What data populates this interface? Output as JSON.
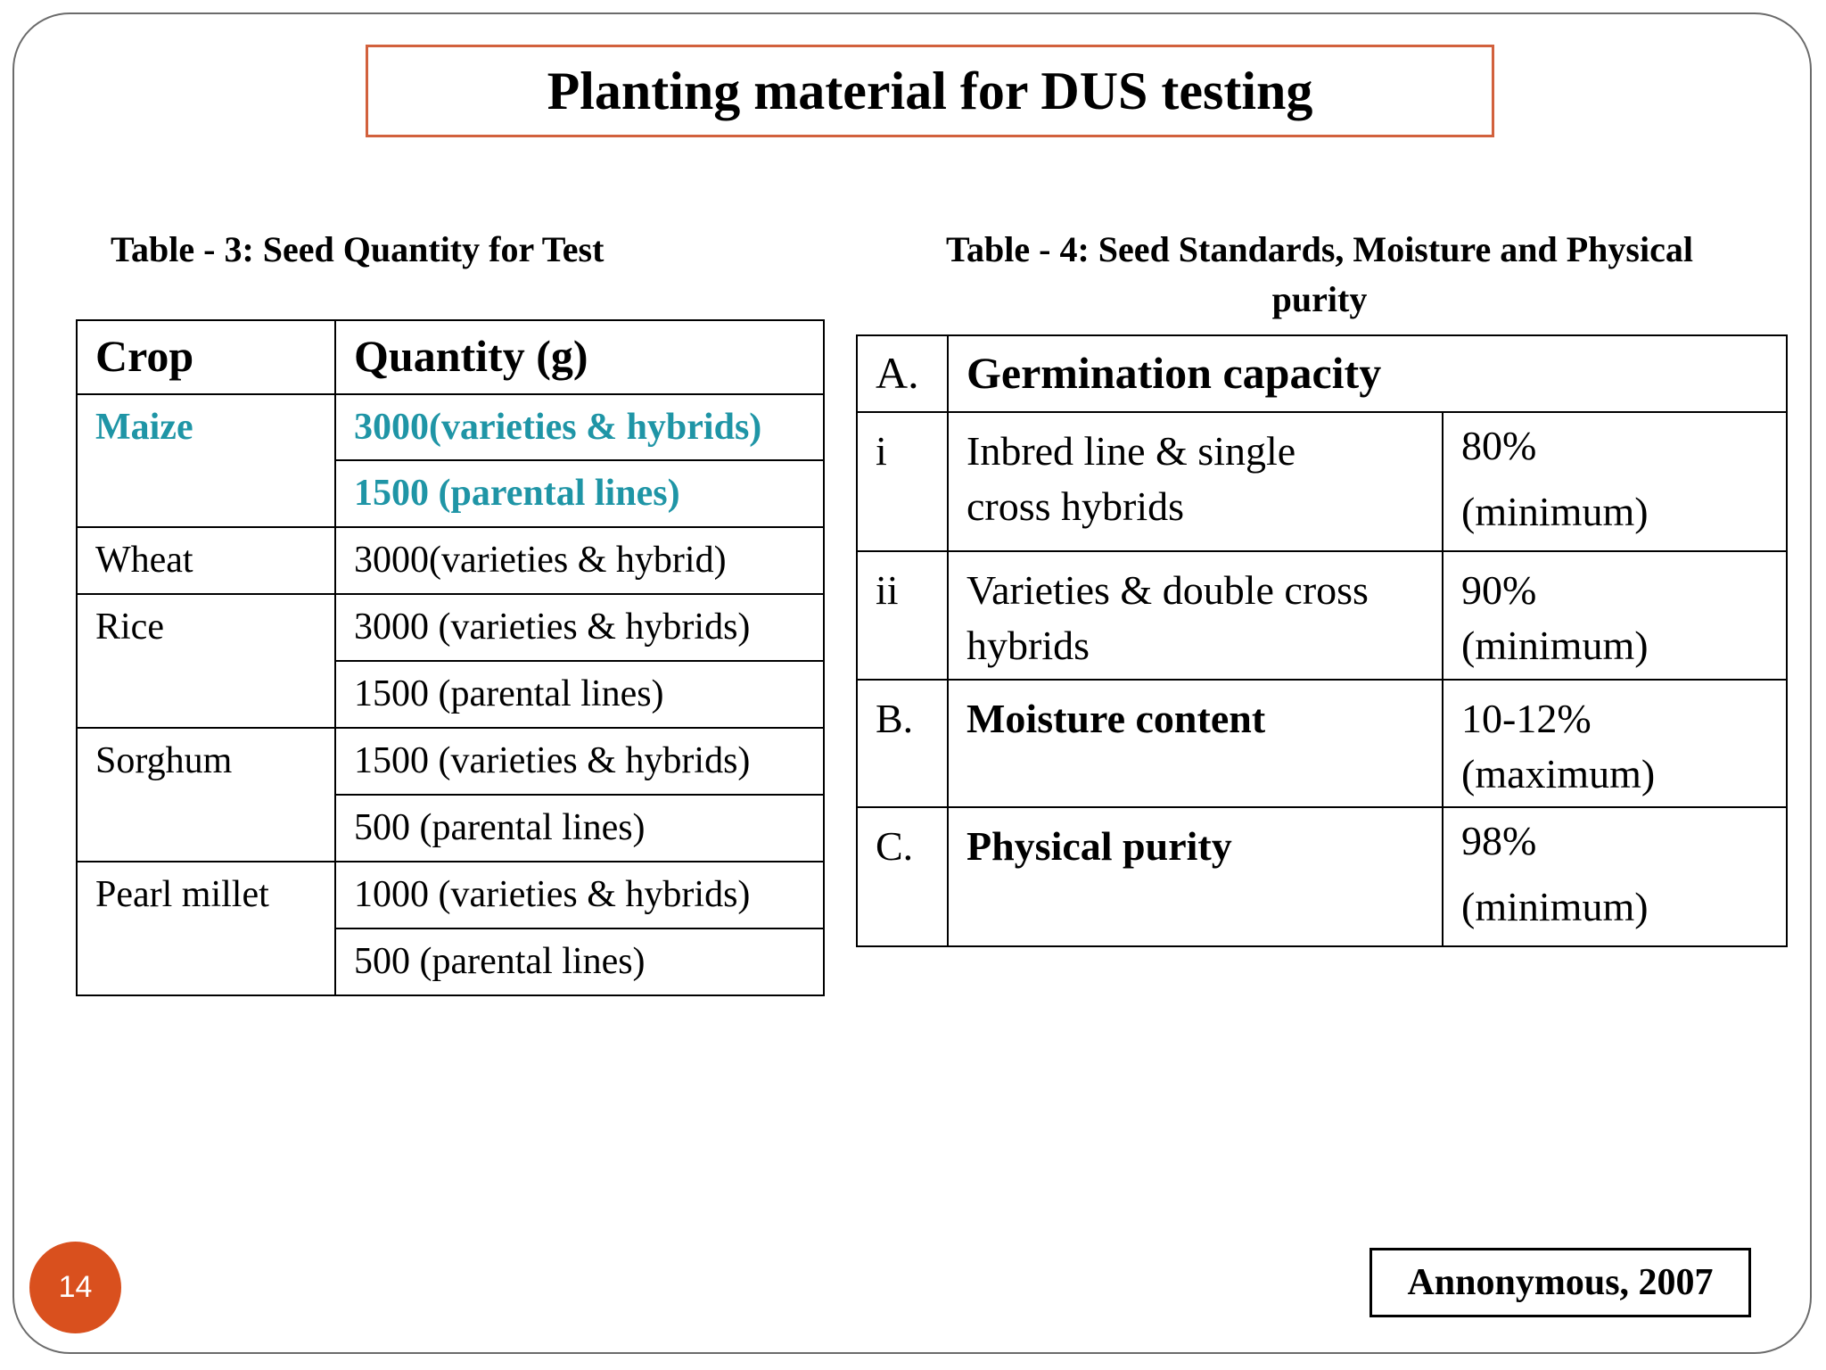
{
  "title": "Planting material for DUS testing",
  "table3": {
    "caption": "Table - 3: Seed Quantity for Test",
    "headers": [
      "Crop",
      "Quantity (g)"
    ],
    "rows": [
      {
        "crop": "Maize",
        "quantities": [
          "3000(varieties & hybrids)",
          "1500 (parental lines)"
        ],
        "color": "#1f95a6"
      },
      {
        "crop": "Wheat",
        "quantities": [
          "3000(varieties & hybrid)"
        ]
      },
      {
        "crop": "Rice",
        "quantities": [
          "3000 (varieties & hybrids)",
          "1500 (parental lines)"
        ]
      },
      {
        "crop": "Sorghum",
        "quantities": [
          "1500 (varieties & hybrids)",
          "500 (parental lines)"
        ]
      },
      {
        "crop": "Pearl millet",
        "quantities": [
          "1000 (varieties & hybrids)",
          "500 (parental lines)"
        ]
      }
    ]
  },
  "table4": {
    "caption_line1": "Table - 4: Seed Standards, Moisture and Physical",
    "caption_line2": "purity",
    "sectionA": {
      "label": "A.",
      "title": "Germination capacity"
    },
    "rows": [
      {
        "label": "i",
        "desc_line1": "Inbred line & single",
        "desc_line2": "cross hybrids",
        "val_line1": "80%",
        "val_line2": "(minimum)"
      },
      {
        "label": "ii",
        "desc_line1": "Varieties & double cross",
        "desc_line2": "hybrids",
        "val_line1": "90%",
        "val_line2": "(minimum)"
      }
    ],
    "sectionB": {
      "label": "B.",
      "title": "Moisture content",
      "val_line1": "10-12%",
      "val_line2": "(maximum)"
    },
    "sectionC": {
      "label": "C.",
      "title": "Physical purity",
      "val_line1": "98%",
      "val_line2": "(minimum)"
    }
  },
  "citation": "Annonymous, 2007",
  "page_number": "14",
  "colors": {
    "accent_teal": "#1f95a6",
    "title_border": "#d2613d",
    "badge": "#d9501e"
  }
}
